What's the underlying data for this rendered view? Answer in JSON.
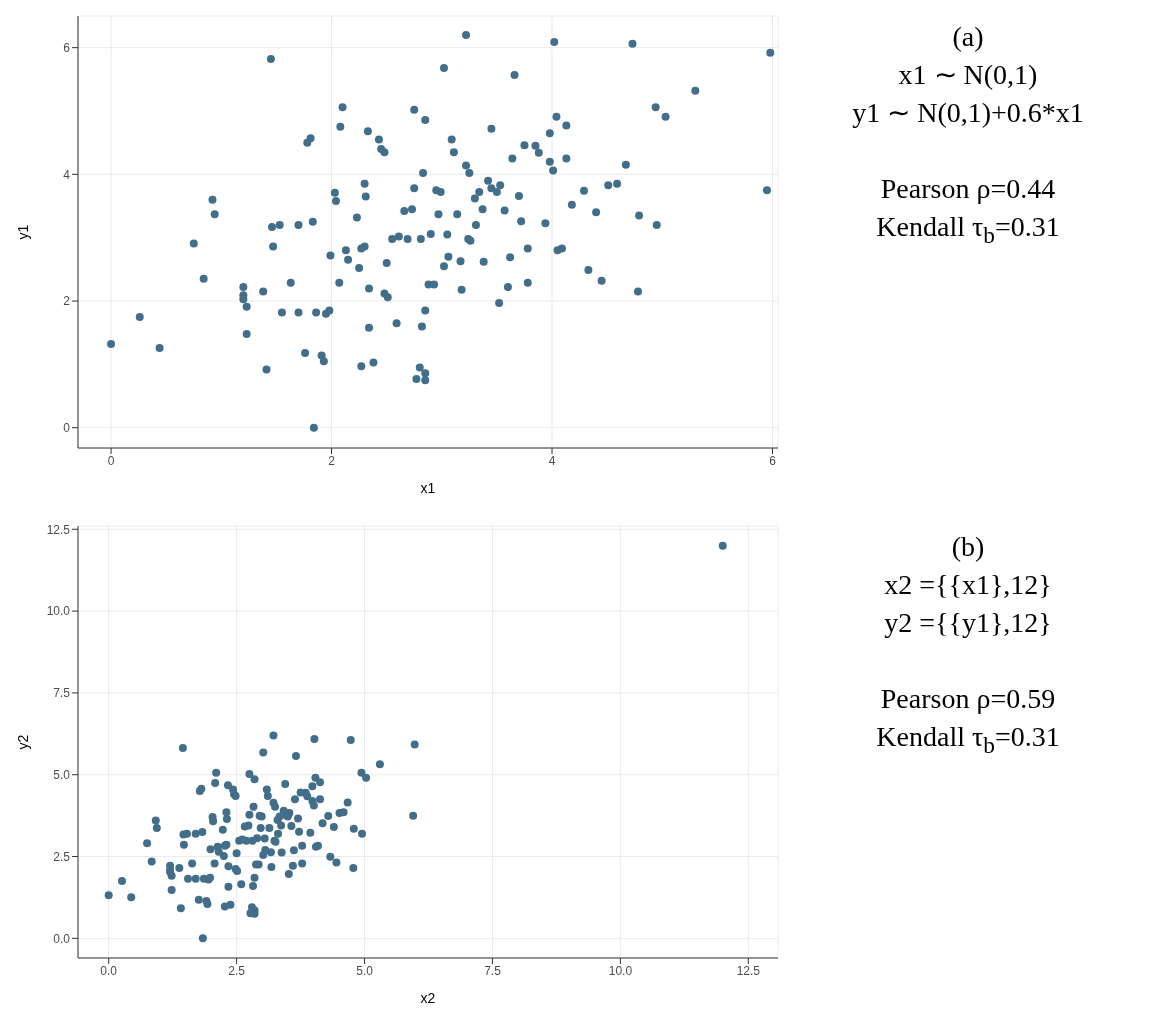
{
  "chart_data": [
    {
      "type": "scatter",
      "xlabel": "x1",
      "ylabel": "y1",
      "color": "#436e8a",
      "marker": "circle",
      "grid": true,
      "xlim": [
        -0.3,
        6.05
      ],
      "ylim": [
        -0.32,
        6.5
      ],
      "xticks": [
        0,
        2,
        4,
        6
      ],
      "yticks": [
        0,
        2,
        4,
        6
      ],
      "x": [
        0,
        0.26,
        0.44,
        0.75,
        0.84,
        0.92,
        0.94,
        1.2,
        1.2,
        1.2,
        1.23,
        1.23,
        1.38,
        1.41,
        1.45,
        1.46,
        1.47,
        1.53,
        1.55,
        1.63,
        1.7,
        1.7,
        1.76,
        1.78,
        1.81,
        1.83,
        1.86,
        1.84,
        1.91,
        1.93,
        1.95,
        1.98,
        1.99,
        2.03,
        2.04,
        2.08,
        2.1,
        2.07,
        2.13,
        2.15,
        2.23,
        2.27,
        2.25,
        2.3,
        2.27,
        2.3,
        2.31,
        2.33,
        2.34,
        2.34,
        2.38,
        2.43,
        2.45,
        2.48,
        2.5,
        2.48,
        2.51,
        2.55,
        2.59,
        2.61,
        2.66,
        2.69,
        2.73,
        2.75,
        2.75,
        2.77,
        2.8,
        2.82,
        2.85,
        2.83,
        2.81,
        2.85,
        2.85,
        2.85,
        2.88,
        2.9,
        2.93,
        2.95,
        2.97,
        2.99,
        3.02,
        3.02,
        3.05,
        3.06,
        3.09,
        3.11,
        3.14,
        3.17,
        3.18,
        3.22,
        3.22,
        3.25,
        3.24,
        3.26,
        3.3,
        3.31,
        3.34,
        3.37,
        3.38,
        3.42,
        3.45,
        3.45,
        3.5,
        3.52,
        3.53,
        3.57,
        3.6,
        3.62,
        3.64,
        3.66,
        3.7,
        3.72,
        3.75,
        3.78,
        3.78,
        3.85,
        3.88,
        3.94,
        3.98,
        3.98,
        4.01,
        4.02,
        4.04,
        4.05,
        4.09,
        4.13,
        4.13,
        4.18,
        4.29,
        4.33,
        4.4,
        4.45,
        4.51,
        4.59,
        4.67,
        4.73,
        4.78,
        4.79,
        4.94,
        4.95,
        5.03,
        5.3,
        5.95,
        5.98
      ],
      "values": [
        1.32,
        1.75,
        1.26,
        2.91,
        2.35,
        3.6,
        3.37,
        2.22,
        2.09,
        2.03,
        1.91,
        1.48,
        2.15,
        0.92,
        5.82,
        3.17,
        2.86,
        3.2,
        1.82,
        2.29,
        1.82,
        3.2,
        1.18,
        4.5,
        4.57,
        3.25,
        1.82,
        0.0,
        1.14,
        1.05,
        1.8,
        1.85,
        2.72,
        3.71,
        3.58,
        4.75,
        5.06,
        2.29,
        2.8,
        2.65,
        3.32,
        2.83,
        2.52,
        2.86,
        0.97,
        3.85,
        3.65,
        4.68,
        2.2,
        1.58,
        1.03,
        4.55,
        4.4,
        4.35,
        2.6,
        2.12,
        2.06,
        2.98,
        1.65,
        3.02,
        3.42,
        2.98,
        3.45,
        3.78,
        5.02,
        0.77,
        0.95,
        1.6,
        4.86,
        4.02,
        2.98,
        1.85,
        0.86,
        0.75,
        2.26,
        3.06,
        2.26,
        3.75,
        3.37,
        3.72,
        5.68,
        2.55,
        3.05,
        2.7,
        4.55,
        4.35,
        3.37,
        2.63,
        2.18,
        6.2,
        4.14,
        4.02,
        2.98,
        2.95,
        3.62,
        3.2,
        3.72,
        3.45,
        2.62,
        3.9,
        4.72,
        3.78,
        3.72,
        1.97,
        3.83,
        3.43,
        2.22,
        2.69,
        4.25,
        5.57,
        3.66,
        3.26,
        4.46,
        2.83,
        2.29,
        4.45,
        4.34,
        3.23,
        4.65,
        4.2,
        4.06,
        6.09,
        4.91,
        2.8,
        2.83,
        4.77,
        4.25,
        3.52,
        3.74,
        2.49,
        3.4,
        2.32,
        3.83,
        3.85,
        4.15,
        6.06,
        2.15,
        3.35,
        5.06,
        3.2,
        4.91,
        5.32,
        3.75,
        5.92
      ]
    },
    {
      "type": "other",
      "annotations": [
        "(a)",
        "x1 ∼ N(0,1)",
        "y1 ∼ N(0,1)+0.6*x1",
        "Pearson ρ=0.44",
        "Kendall τ$_{b}$=0.31"
      ]
    },
    {
      "type": "scatter",
      "xlabel": "x2",
      "ylabel": "y2",
      "color": "#436e8a",
      "marker": "circle",
      "grid": true,
      "xlim": [
        -0.6,
        13.08
      ],
      "ylim": [
        -0.6,
        12.6
      ],
      "xticks": [
        {
          "value": 0,
          "label": "0.0"
        },
        {
          "value": 2.5,
          "label": "2.5"
        },
        {
          "value": 5,
          "label": "5.0"
        },
        {
          "value": 7.5,
          "label": "7.5"
        },
        {
          "value": 10,
          "label": "10.0"
        },
        {
          "value": 12.5,
          "label": "12.5"
        }
      ],
      "yticks": [
        {
          "value": 0,
          "label": "0.0"
        },
        {
          "value": 2.5,
          "label": "2.5"
        },
        {
          "value": 5,
          "label": "5.0"
        },
        {
          "value": 7.5,
          "label": "7.5"
        },
        {
          "value": 10,
          "label": "10.0"
        },
        {
          "value": 12.5,
          "label": "12.5"
        }
      ],
      "x": [
        0,
        0.26,
        0.44,
        0.75,
        0.84,
        0.92,
        0.94,
        1.2,
        1.2,
        1.2,
        1.23,
        1.23,
        1.38,
        1.41,
        1.45,
        1.46,
        1.47,
        1.53,
        1.55,
        1.63,
        1.7,
        1.7,
        1.76,
        1.78,
        1.81,
        1.83,
        1.86,
        1.84,
        1.91,
        1.93,
        1.95,
        1.98,
        1.99,
        2.03,
        2.04,
        2.08,
        2.1,
        2.07,
        2.13,
        2.15,
        2.23,
        2.27,
        2.25,
        2.3,
        2.27,
        2.3,
        2.31,
        2.33,
        2.34,
        2.34,
        2.38,
        2.43,
        2.45,
        2.48,
        2.5,
        2.48,
        2.51,
        2.55,
        2.59,
        2.61,
        2.66,
        2.69,
        2.73,
        2.75,
        2.75,
        2.77,
        2.8,
        2.82,
        2.85,
        2.83,
        2.81,
        2.85,
        2.85,
        2.85,
        2.88,
        2.9,
        2.93,
        2.95,
        2.97,
        2.99,
        3.02,
        3.02,
        3.05,
        3.06,
        3.09,
        3.11,
        3.14,
        3.17,
        3.18,
        3.22,
        3.22,
        3.25,
        3.24,
        3.26,
        3.3,
        3.31,
        3.34,
        3.37,
        3.38,
        3.42,
        3.45,
        3.45,
        3.5,
        3.52,
        3.53,
        3.57,
        3.6,
        3.62,
        3.64,
        3.66,
        3.7,
        3.72,
        3.75,
        3.78,
        3.78,
        3.85,
        3.88,
        3.94,
        3.98,
        3.98,
        4.01,
        4.02,
        4.04,
        4.05,
        4.09,
        4.13,
        4.13,
        4.18,
        4.29,
        4.33,
        4.4,
        4.45,
        4.51,
        4.59,
        4.67,
        4.73,
        4.78,
        4.79,
        4.94,
        4.95,
        5.03,
        5.3,
        5.95,
        5.98,
        12
      ],
      "values": [
        1.32,
        1.75,
        1.26,
        2.91,
        2.35,
        3.6,
        3.37,
        2.22,
        2.09,
        2.03,
        1.91,
        1.48,
        2.15,
        0.92,
        5.82,
        3.17,
        2.86,
        3.2,
        1.82,
        2.29,
        1.82,
        3.2,
        1.18,
        4.5,
        4.57,
        3.25,
        1.82,
        0.0,
        1.14,
        1.05,
        1.8,
        1.85,
        2.72,
        3.71,
        3.58,
        4.75,
        5.06,
        2.29,
        2.8,
        2.65,
        3.32,
        2.83,
        2.52,
        2.86,
        0.97,
        3.85,
        3.65,
        4.68,
        2.2,
        1.58,
        1.03,
        4.55,
        4.4,
        4.35,
        2.6,
        2.12,
        2.06,
        2.98,
        1.65,
        3.02,
        3.42,
        2.98,
        3.45,
        3.78,
        5.02,
        0.77,
        0.95,
        1.6,
        4.86,
        4.02,
        2.98,
        1.85,
        0.86,
        0.75,
        2.26,
        3.06,
        2.26,
        3.75,
        3.37,
        3.72,
        5.68,
        2.55,
        3.05,
        2.7,
        4.55,
        4.35,
        3.37,
        2.63,
        2.18,
        6.2,
        4.14,
        4.02,
        2.98,
        2.95,
        3.62,
        3.2,
        3.72,
        3.45,
        2.62,
        3.9,
        4.72,
        3.78,
        3.72,
        1.97,
        3.83,
        3.43,
        2.22,
        2.69,
        4.25,
        5.57,
        3.66,
        3.26,
        4.46,
        2.83,
        2.29,
        4.45,
        4.34,
        3.23,
        4.65,
        4.2,
        4.06,
        6.09,
        4.91,
        2.8,
        2.83,
        4.77,
        4.25,
        3.52,
        3.74,
        2.49,
        3.4,
        2.32,
        3.83,
        3.85,
        4.15,
        6.06,
        2.15,
        3.35,
        5.06,
        3.2,
        4.91,
        5.32,
        3.75,
        5.92,
        12
      ]
    },
    {
      "type": "other",
      "annotations": [
        "(b)",
        "x2 ={{x1},12}",
        "y2 ={{y1},12}",
        "Pearson ρ=0.59",
        "Kendall τ$_{b}$=0.31"
      ]
    }
  ]
}
